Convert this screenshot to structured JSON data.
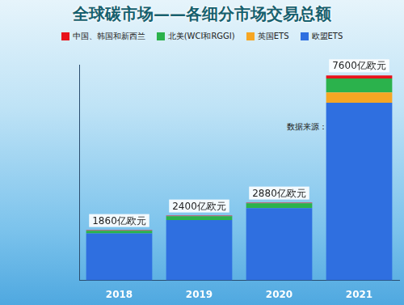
{
  "chart_data": {
    "type": "bar",
    "title": "全球碳市场——各细分市场交易总额",
    "subtitle": "数据来源：路孚特",
    "categories": [
      "2018",
      "2019",
      "2020",
      "2021"
    ],
    "series": [
      {
        "name": "中国、韩国和新西兰",
        "color": "#e8141b",
        "values": [
          20,
          20,
          20,
          110
        ]
      },
      {
        "name": "北美(WCI和RGGI)",
        "color": "#2bb24c",
        "values": [
          100,
          140,
          180,
          520
        ]
      },
      {
        "name": "英国ETS",
        "color": "#f6a623",
        "values": [
          0,
          0,
          0,
          380
        ]
      },
      {
        "name": "欧盟ETS",
        "color": "#2f6fe0",
        "values": [
          1740,
          2240,
          2680,
          6590
        ]
      }
    ],
    "total_labels": [
      "1860亿欧元",
      "2400亿欧元",
      "2880亿欧元",
      "7600亿欧元"
    ],
    "ylim": [
      0,
      8000
    ],
    "stacked": true,
    "grid": false,
    "legend": "top",
    "tick_labels": "x"
  }
}
